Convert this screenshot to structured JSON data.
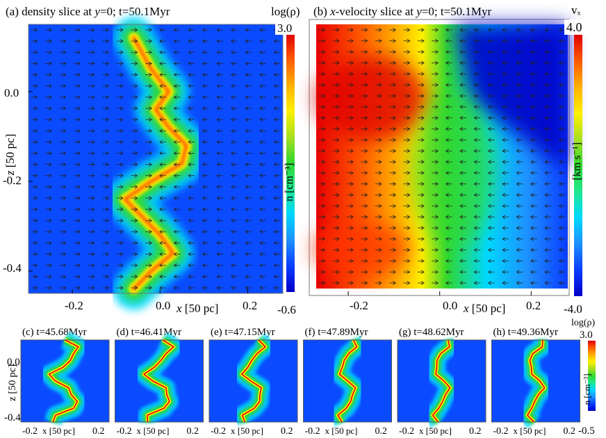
{
  "panel_a": {
    "title_pre": "(a) density slice at ",
    "title_var": "y",
    "title_post": "=0; t=50.1Myr",
    "cbar_label": "log(ρ)",
    "cbar_max": "3.0",
    "cbar_min": "-0.6",
    "cbar_unit": "n [cm⁻³]",
    "ylabel_var": "z",
    "ylabel_unit": " [50 pc]",
    "xlabel_var": "x",
    "xlabel_unit": " [50 pc]"
  },
  "panel_b": {
    "title_pre": "(b) ",
    "title_var": "x",
    "title_mid": "-velocity slice at ",
    "title_var2": "y",
    "title_post": "=0; t=50.1Myr",
    "cbar_label": "vₓ",
    "cbar_max": "4.0",
    "cbar_min": "-4.0",
    "cbar_unit": "[km s⁻¹]",
    "xlabel_var": "x",
    "xlabel_unit": " [50 pc]"
  },
  "bottom": {
    "titles": [
      "(c) t=45.68Myr",
      "(d) t=46.41Myr",
      "(e) t=47.15Myr",
      "(f) t=47.89Myr",
      "(g) t=48.62Myr",
      "(h) t=49.36Myr"
    ],
    "xtick_left": "-0.2",
    "xtick_right": "0.2",
    "xlabel": "x [50 pc]",
    "ylabel": "z [50 pc]",
    "cbar_label": "log(ρ)",
    "cbar_max": "3.0",
    "cbar_min": "-0.5",
    "cbar_unit": "n [cm⁻³]"
  },
  "colors": {
    "colormap": [
      "#0000c8",
      "#0a3cff",
      "#1e90ff",
      "#00d8ff",
      "#20e890",
      "#30d830",
      "#a8e020",
      "#fff000",
      "#ffb000",
      "#ff5a00",
      "#e00000"
    ]
  },
  "chart_data": [
    {
      "type": "heatmap",
      "title": "(a) density slice at y=0; t=50.1Myr",
      "quantity": "log(ρ) n [cm⁻³]",
      "xlabel": "x [50 pc]",
      "ylabel": "z [50 pc]",
      "xlim": [
        -0.3,
        0.28
      ],
      "ylim": [
        -0.45,
        0.15
      ],
      "xticks": [
        -0.2,
        0.0,
        0.2
      ],
      "yticks": [
        0.0,
        -0.2,
        -0.4
      ],
      "colorbar_range": [
        -0.6,
        3.0
      ],
      "overlay": "velocity arrows",
      "filament_center_x": [
        -0.06,
        -0.02,
        0.03,
        0.0,
        -0.04,
        -0.08,
        -0.02,
        0.05,
        0.06,
        0.02,
        -0.01,
        0.02,
        -0.02,
        -0.06
      ],
      "filament_z": [
        -0.44,
        -0.4,
        -0.36,
        -0.32,
        -0.28,
        -0.24,
        -0.2,
        -0.16,
        -0.12,
        -0.08,
        -0.04,
        0.0,
        0.05,
        0.12
      ]
    },
    {
      "type": "heatmap",
      "title": "(b) x-velocity slice at y=0; t=50.1Myr",
      "quantity": "vx [km s⁻¹]",
      "xlabel": "x [50 pc]",
      "xlim": [
        -0.3,
        0.28
      ],
      "ylim": [
        -0.45,
        0.15
      ],
      "xticks": [
        -0.2,
        0.0,
        0.2
      ],
      "colorbar_range": [
        -4.0,
        4.0
      ],
      "overlay": "velocity arrows"
    },
    {
      "type": "heatmap",
      "panels": [
        "(c) t=45.68Myr",
        "(d) t=46.41Myr",
        "(e) t=47.15Myr",
        "(f) t=47.89Myr",
        "(g) t=48.62Myr",
        "(h) t=49.36Myr"
      ],
      "quantity": "log(ρ) n [cm⁻³]",
      "xlabel": "x [50 pc]",
      "ylabel": "z [50 pc]",
      "xticks": [
        -0.2,
        0.2
      ],
      "yticks": [
        0.0,
        -0.4
      ],
      "colorbar_range": [
        -0.5,
        3.0
      ]
    }
  ]
}
